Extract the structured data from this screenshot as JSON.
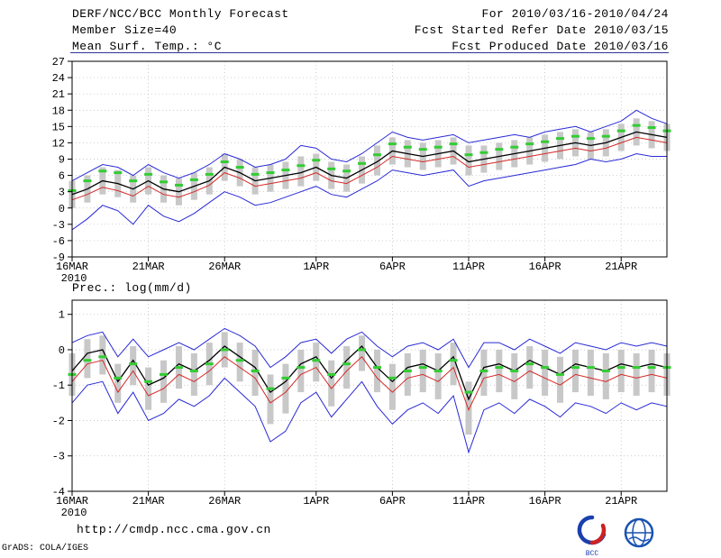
{
  "header": {
    "title": "DERF/NCC/BCC Monthly Forecast",
    "member_size": "Member Size=40",
    "var_label": "Mean Surf. Temp.: °C",
    "for_range": "For 2010/03/16-2010/04/24",
    "refer_date": "Fcst Started Refer Date 2010/03/15",
    "produced_date": "Fcst Produced Date 2010/03/16"
  },
  "footer": {
    "url": "http://cmdp.ncc.cma.gov.cn",
    "credit": "GrADS: COLA/IGES",
    "logos": [
      {
        "name": "bcc-logo",
        "caption": "BCC"
      },
      {
        "name": "cmc-logo",
        "caption": ""
      }
    ]
  },
  "colors": {
    "envelope_line": "#2929d6",
    "control_line": "#d62929",
    "mean_line": "#000000",
    "median_marker": "#33cc33",
    "spread_bar": "#c8c8c8",
    "divider": "#333399"
  },
  "chart_data": [
    {
      "type": "line",
      "title": "Mean Surf. Temp.: °C",
      "x_count": 40,
      "x_ticks": [
        {
          "i": 0,
          "label": "16MAR"
        },
        {
          "i": 5,
          "label": "21MAR"
        },
        {
          "i": 10,
          "label": "26MAR"
        },
        {
          "i": 16,
          "label": "1APR"
        },
        {
          "i": 21,
          "label": "6APR"
        },
        {
          "i": 26,
          "label": "11APR"
        },
        {
          "i": 31,
          "label": "16APR"
        },
        {
          "i": 36,
          "label": "21APR"
        }
      ],
      "x_sub_label": "2010",
      "ylim": [
        -9,
        27
      ],
      "yticks": [
        -9,
        -6,
        -3,
        0,
        3,
        6,
        9,
        12,
        15,
        18,
        21,
        24,
        27
      ],
      "grid": true,
      "legend": "none",
      "bars": {
        "name": "ensemble-spread",
        "color": "#c8c8c8",
        "top": [
          5.0,
          6.0,
          7.5,
          7.0,
          6.0,
          7.5,
          6.0,
          5.5,
          6.5,
          7.5,
          10.0,
          9.0,
          7.5,
          8.0,
          8.5,
          9.5,
          10.0,
          8.5,
          8.0,
          9.5,
          11.5,
          13.0,
          12.5,
          12.0,
          12.5,
          13.0,
          11.5,
          11.5,
          12.0,
          12.5,
          13.0,
          13.5,
          14.0,
          14.5,
          14.0,
          14.5,
          15.5,
          16.5,
          16.0,
          15.5
        ],
        "bottom": [
          0.0,
          1.0,
          2.5,
          2.0,
          1.0,
          2.5,
          1.0,
          0.5,
          1.5,
          2.5,
          5.0,
          4.0,
          2.5,
          3.0,
          3.5,
          4.0,
          5.0,
          3.5,
          3.0,
          4.5,
          6.0,
          8.0,
          7.5,
          7.0,
          7.5,
          8.0,
          6.0,
          6.5,
          7.0,
          7.5,
          8.0,
          8.5,
          9.0,
          9.5,
          9.0,
          9.5,
          10.5,
          11.5,
          11.0,
          10.5
        ]
      },
      "markers": {
        "name": "ensemble-median",
        "color": "#33cc33",
        "values": [
          3.2,
          5.0,
          6.8,
          6.5,
          5.0,
          6.2,
          4.8,
          4.2,
          5.2,
          6.2,
          8.5,
          7.5,
          6.2,
          6.5,
          7.0,
          7.8,
          8.8,
          7.2,
          6.8,
          8.2,
          9.8,
          11.8,
          11.2,
          10.8,
          11.2,
          11.8,
          9.8,
          10.2,
          10.8,
          11.2,
          11.8,
          12.2,
          12.8,
          13.2,
          12.8,
          13.2,
          14.2,
          15.2,
          14.8,
          14.2
        ]
      },
      "series": [
        {
          "name": "ensemble-max",
          "color": "#2929d6",
          "width": 1,
          "values": [
            5.0,
            6.5,
            8.0,
            7.5,
            6.0,
            8.0,
            6.5,
            5.5,
            6.5,
            8.0,
            10.0,
            9.0,
            7.5,
            8.0,
            9.0,
            11.5,
            11.0,
            9.0,
            8.5,
            10.0,
            12.0,
            14.0,
            13.0,
            12.5,
            13.0,
            13.5,
            12.0,
            12.5,
            13.0,
            13.5,
            13.0,
            14.0,
            14.5,
            15.0,
            14.0,
            15.0,
            16.0,
            18.0,
            16.5,
            15.5
          ]
        },
        {
          "name": "ensemble-min",
          "color": "#2929d6",
          "width": 1,
          "values": [
            -4.0,
            -2.0,
            0.5,
            -0.5,
            -3.0,
            0.5,
            -1.5,
            -2.5,
            -1.0,
            1.0,
            3.0,
            2.0,
            0.5,
            1.0,
            2.0,
            3.0,
            4.0,
            2.5,
            2.0,
            3.5,
            5.0,
            7.0,
            6.5,
            6.0,
            6.5,
            7.0,
            4.0,
            5.0,
            5.5,
            6.0,
            6.5,
            7.0,
            7.5,
            8.0,
            9.0,
            8.5,
            9.0,
            10.0,
            9.5,
            9.5
          ]
        },
        {
          "name": "control-run",
          "color": "#d62929",
          "width": 1,
          "values": [
            1.5,
            2.5,
            3.8,
            3.2,
            2.2,
            4.0,
            2.5,
            2.0,
            3.0,
            4.2,
            6.5,
            5.5,
            4.0,
            4.5,
            5.0,
            5.5,
            6.5,
            5.0,
            4.5,
            6.0,
            7.5,
            9.5,
            9.0,
            8.5,
            9.0,
            9.5,
            7.5,
            8.0,
            8.5,
            9.0,
            9.5,
            10.0,
            10.5,
            11.0,
            10.5,
            11.0,
            12.0,
            13.0,
            12.5,
            12.0
          ]
        },
        {
          "name": "ensemble-mean",
          "color": "#000000",
          "width": 1.3,
          "values": [
            2.5,
            3.5,
            5.0,
            4.5,
            3.5,
            5.0,
            3.5,
            3.0,
            4.0,
            5.0,
            7.5,
            6.5,
            5.0,
            5.5,
            6.0,
            6.5,
            7.5,
            6.0,
            5.5,
            7.0,
            8.5,
            10.5,
            10.0,
            9.5,
            10.0,
            10.5,
            8.5,
            9.0,
            9.5,
            10.0,
            10.5,
            11.0,
            11.5,
            12.0,
            11.5,
            12.0,
            13.0,
            14.0,
            13.5,
            13.0
          ]
        }
      ]
    },
    {
      "type": "line",
      "title": "Prec.: log(mm/d)",
      "x_count": 40,
      "x_ticks": [
        {
          "i": 0,
          "label": "16MAR"
        },
        {
          "i": 5,
          "label": "21MAR"
        },
        {
          "i": 10,
          "label": "26MAR"
        },
        {
          "i": 16,
          "label": "1APR"
        },
        {
          "i": 21,
          "label": "6APR"
        },
        {
          "i": 26,
          "label": "11APR"
        },
        {
          "i": 31,
          "label": "16APR"
        },
        {
          "i": 36,
          "label": "21APR"
        }
      ],
      "x_sub_label": "2010",
      "ylim": [
        -4,
        1.4
      ],
      "yticks": [
        -4,
        -3,
        -2,
        -1,
        0,
        1
      ],
      "grid": true,
      "legend": "none",
      "bars": {
        "name": "ensemble-spread",
        "color": "#c8c8c8",
        "top": [
          -0.1,
          0.3,
          0.4,
          -0.4,
          0.1,
          -0.5,
          -0.3,
          0.1,
          -0.1,
          0.2,
          0.5,
          0.2,
          0.0,
          -0.7,
          -0.4,
          0.0,
          0.2,
          -0.3,
          0.1,
          0.4,
          0.0,
          -0.4,
          -0.1,
          0.0,
          -0.1,
          0.2,
          -0.9,
          0.0,
          0.0,
          -0.1,
          0.1,
          0.0,
          -0.2,
          0.0,
          0.0,
          -0.1,
          0.0,
          -0.1,
          0.0,
          -0.1
        ],
        "bottom": [
          -1.3,
          -0.8,
          -0.7,
          -1.5,
          -1.0,
          -1.7,
          -1.5,
          -1.1,
          -1.3,
          -1.0,
          -0.5,
          -0.9,
          -1.3,
          -2.1,
          -1.8,
          -1.2,
          -0.9,
          -1.6,
          -1.1,
          -0.6,
          -1.2,
          -1.7,
          -1.3,
          -1.2,
          -1.4,
          -1.0,
          -2.4,
          -1.3,
          -1.2,
          -1.4,
          -1.1,
          -1.3,
          -1.5,
          -1.2,
          -1.3,
          -1.4,
          -1.2,
          -1.3,
          -1.2,
          -1.3
        ]
      },
      "markers": {
        "name": "ensemble-median",
        "color": "#33cc33",
        "values": [
          -0.7,
          -0.3,
          -0.2,
          -0.8,
          -0.4,
          -0.9,
          -0.7,
          -0.5,
          -0.6,
          -0.4,
          0.0,
          -0.3,
          -0.6,
          -1.1,
          -0.8,
          -0.5,
          -0.3,
          -0.7,
          -0.4,
          0.0,
          -0.5,
          -0.8,
          -0.6,
          -0.5,
          -0.6,
          -0.3,
          -1.2,
          -0.6,
          -0.5,
          -0.6,
          -0.4,
          -0.5,
          -0.7,
          -0.5,
          -0.5,
          -0.6,
          -0.5,
          -0.5,
          -0.5,
          -0.5
        ]
      },
      "series": [
        {
          "name": "ensemble-max",
          "color": "#2929d6",
          "width": 1,
          "values": [
            0.2,
            0.4,
            0.5,
            -0.2,
            0.3,
            -0.2,
            0.0,
            0.2,
            0.0,
            0.3,
            0.6,
            0.4,
            0.1,
            -0.5,
            -0.2,
            0.2,
            0.3,
            -0.1,
            0.3,
            0.5,
            0.1,
            -0.2,
            0.1,
            0.2,
            0.0,
            0.3,
            -0.5,
            0.2,
            0.2,
            0.0,
            0.3,
            0.1,
            -0.1,
            0.2,
            0.1,
            0.0,
            0.2,
            0.1,
            0.2,
            0.1
          ]
        },
        {
          "name": "ensemble-min",
          "color": "#2929d6",
          "width": 1,
          "values": [
            -1.5,
            -1.0,
            -0.9,
            -1.8,
            -1.2,
            -2.0,
            -1.8,
            -1.4,
            -1.6,
            -1.3,
            -0.8,
            -1.2,
            -1.6,
            -2.6,
            -2.3,
            -1.5,
            -1.2,
            -1.9,
            -1.4,
            -0.9,
            -1.6,
            -2.1,
            -1.7,
            -1.5,
            -1.8,
            -1.3,
            -2.9,
            -1.7,
            -1.5,
            -1.8,
            -1.4,
            -1.6,
            -1.9,
            -1.5,
            -1.6,
            -1.8,
            -1.5,
            -1.7,
            -1.5,
            -1.6
          ]
        },
        {
          "name": "control-run",
          "color": "#d62929",
          "width": 1,
          "values": [
            -0.9,
            -0.4,
            -0.3,
            -1.2,
            -0.6,
            -1.3,
            -1.1,
            -0.7,
            -0.9,
            -0.6,
            -0.2,
            -0.5,
            -0.8,
            -1.5,
            -1.2,
            -0.7,
            -0.5,
            -1.1,
            -0.6,
            -0.2,
            -0.8,
            -1.2,
            -0.8,
            -0.7,
            -0.9,
            -0.5,
            -1.7,
            -0.8,
            -0.7,
            -0.9,
            -0.6,
            -0.8,
            -1.0,
            -0.7,
            -0.8,
            -0.9,
            -0.7,
            -0.8,
            -0.7,
            -0.8
          ]
        },
        {
          "name": "ensemble-mean",
          "color": "#000000",
          "width": 1.3,
          "values": [
            -0.6,
            -0.1,
            0.0,
            -0.9,
            -0.3,
            -1.0,
            -0.8,
            -0.4,
            -0.6,
            -0.3,
            0.1,
            -0.2,
            -0.5,
            -1.2,
            -0.9,
            -0.4,
            -0.2,
            -0.8,
            -0.3,
            0.1,
            -0.5,
            -0.9,
            -0.5,
            -0.4,
            -0.6,
            -0.2,
            -1.4,
            -0.5,
            -0.4,
            -0.6,
            -0.3,
            -0.5,
            -0.7,
            -0.4,
            -0.5,
            -0.6,
            -0.4,
            -0.5,
            -0.4,
            -0.5
          ]
        }
      ]
    }
  ]
}
